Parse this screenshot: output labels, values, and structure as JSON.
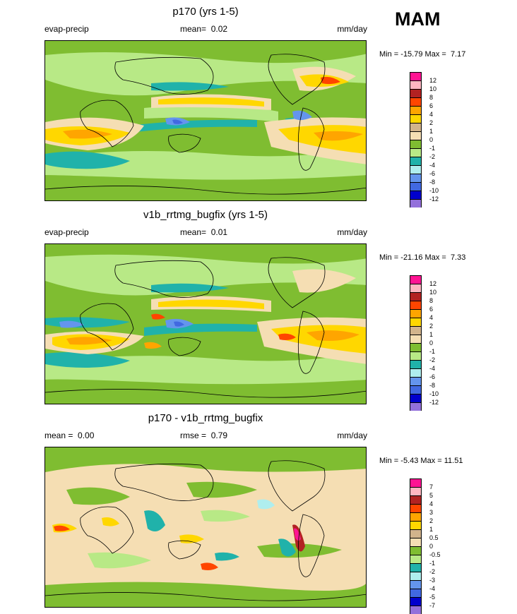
{
  "season": "MAM",
  "panels": [
    {
      "title": "p170 (yrs 1-5)",
      "left_label": "evap-precip",
      "mean_label": "mean=",
      "mean_value": "0.02",
      "units": "mm/day",
      "min_label": "Min =",
      "min_value": "-15.79",
      "max_label": "Max =",
      "max_value": "7.17",
      "levels": [
        "12",
        "10",
        "8",
        "6",
        "4",
        "2",
        "1",
        "0",
        "-1",
        "-2",
        "-4",
        "-6",
        "-8",
        "-10",
        "-12"
      ],
      "colors": [
        "#ff1493",
        "#ffb6c1",
        "#b22222",
        "#ff4500",
        "#ffa500",
        "#ffd700",
        "#d2b48c",
        "#f5deb3",
        "#7fbd31",
        "#b8e986",
        "#20b2aa",
        "#afeeee",
        "#6495ed",
        "#4169e1",
        "#0000cd",
        "#9370db"
      ]
    },
    {
      "title": "v1b_rrtmg_bugfix (yrs 1-5)",
      "left_label": "evap-precip",
      "mean_label": "mean=",
      "mean_value": "0.01",
      "units": "mm/day",
      "min_label": "Min =",
      "min_value": "-21.16",
      "max_label": "Max =",
      "max_value": "7.33",
      "levels": [
        "12",
        "10",
        "8",
        "6",
        "4",
        "2",
        "1",
        "0",
        "-1",
        "-2",
        "-4",
        "-6",
        "-8",
        "-10",
        "-12"
      ],
      "colors": [
        "#ff1493",
        "#ffb6c1",
        "#b22222",
        "#ff4500",
        "#ffa500",
        "#ffd700",
        "#d2b48c",
        "#f5deb3",
        "#7fbd31",
        "#b8e986",
        "#20b2aa",
        "#afeeee",
        "#6495ed",
        "#4169e1",
        "#0000cd",
        "#9370db"
      ]
    },
    {
      "title": "p170 - v1b_rrtmg_bugfix",
      "mean_label": "mean =",
      "mean_value": "0.00",
      "rmse_label": "rmse =",
      "rmse_value": "0.79",
      "units": "mm/day",
      "min_label": "Min =",
      "min_value": "-5.43",
      "max_label": "Max =",
      "max_value": "11.51",
      "levels": [
        "7",
        "5",
        "4",
        "3",
        "2",
        "1",
        "0.5",
        "0",
        "-0.5",
        "-1",
        "-2",
        "-3",
        "-4",
        "-5",
        "-7"
      ],
      "colors": [
        "#ff1493",
        "#ffb6c1",
        "#b22222",
        "#ff4500",
        "#ffa500",
        "#ffd700",
        "#d2b48c",
        "#f5deb3",
        "#7fbd31",
        "#b8e986",
        "#20b2aa",
        "#afeeee",
        "#6495ed",
        "#4169e1",
        "#0000cd",
        "#9370db"
      ]
    }
  ]
}
